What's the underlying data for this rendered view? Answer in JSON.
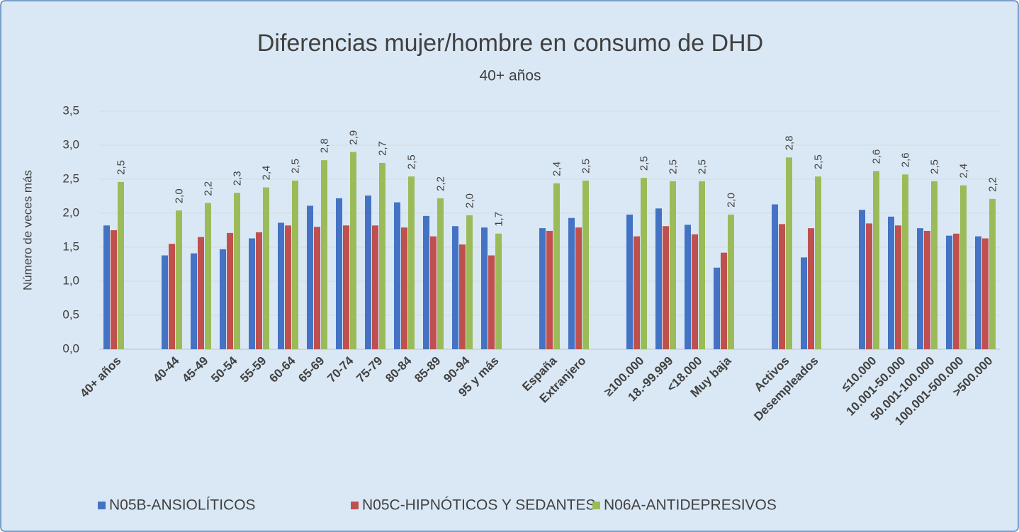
{
  "chart_data": {
    "type": "bar",
    "title": "Diferencias mujer/hombre en consumo de DHD",
    "subtitle": "40+ años",
    "y_label": "Número de veces más",
    "categories": [
      "40+ años",
      null,
      "40-44",
      "45-49",
      "50-54",
      "55-59",
      "60-64",
      "65-69",
      "70-74",
      "75-79",
      "80-84",
      "85-89",
      "90-94",
      "95 y más",
      null,
      "España",
      "Extranjero",
      null,
      "≥100.000",
      "18.-99.999",
      "<18.000",
      "Muy baja",
      null,
      "Activos",
      "Desempleados",
      null,
      "≤10.000",
      "10.001-50.000",
      "50.001-100.000",
      "100.001-500.000",
      ">500.000"
    ],
    "series": [
      {
        "name": "N05B-ANSIOLÍTICOS",
        "color": "#4472c4",
        "values": [
          1.82,
          null,
          1.38,
          1.41,
          1.47,
          1.63,
          1.86,
          2.11,
          2.22,
          2.26,
          2.16,
          1.96,
          1.81,
          1.79,
          null,
          1.78,
          1.93,
          null,
          1.98,
          2.07,
          1.83,
          1.2,
          null,
          2.13,
          1.35,
          null,
          2.05,
          1.95,
          1.78,
          1.67,
          1.66
        ]
      },
      {
        "name": "N05C-HIPNÓTICOS Y SEDANTES",
        "color": "#c0504d",
        "values": [
          1.75,
          null,
          1.55,
          1.65,
          1.71,
          1.72,
          1.82,
          1.8,
          1.82,
          1.82,
          1.79,
          1.66,
          1.54,
          1.38,
          null,
          1.74,
          1.79,
          null,
          1.66,
          1.81,
          1.69,
          1.42,
          null,
          1.84,
          1.78,
          null,
          1.85,
          1.82,
          1.74,
          1.7,
          1.63
        ]
      },
      {
        "name": "N06A-ANTIDEPRESIVOS",
        "color": "#9bbb59",
        "values": [
          2.46,
          null,
          2.04,
          2.15,
          2.3,
          2.38,
          2.48,
          2.78,
          2.9,
          2.74,
          2.54,
          2.22,
          1.97,
          1.7,
          null,
          2.44,
          2.48,
          null,
          2.52,
          2.47,
          2.47,
          1.98,
          null,
          2.82,
          2.54,
          null,
          2.62,
          2.57,
          2.47,
          2.41,
          2.21
        ],
        "value_labels": [
          "2,5",
          null,
          "2,0",
          "2,2",
          "2,3",
          "2,4",
          "2,5",
          "2,8",
          "2,9",
          "2,7",
          "2,5",
          "2,2",
          "2,0",
          "1,7",
          null,
          "2,4",
          "2,5",
          null,
          "2,5",
          "2,5",
          "2,5",
          "2,0",
          null,
          "2,8",
          "2,5",
          null,
          "2,6",
          "2,6",
          "2,5",
          "2,4",
          "2,2"
        ]
      }
    ],
    "ylim": [
      0,
      3.5
    ],
    "yticks": [
      {
        "value": 0,
        "label": "0,0"
      },
      {
        "value": 0.5,
        "label": "0,5"
      },
      {
        "value": 1,
        "label": "1,0"
      },
      {
        "value": 1.5,
        "label": "1,5"
      },
      {
        "value": 2,
        "label": "2,0"
      },
      {
        "value": 2.5,
        "label": "2,5"
      },
      {
        "value": 3,
        "label": "3,0"
      },
      {
        "value": 3.5,
        "label": "3,5"
      }
    ],
    "grid": true,
    "legend": "bottom"
  }
}
